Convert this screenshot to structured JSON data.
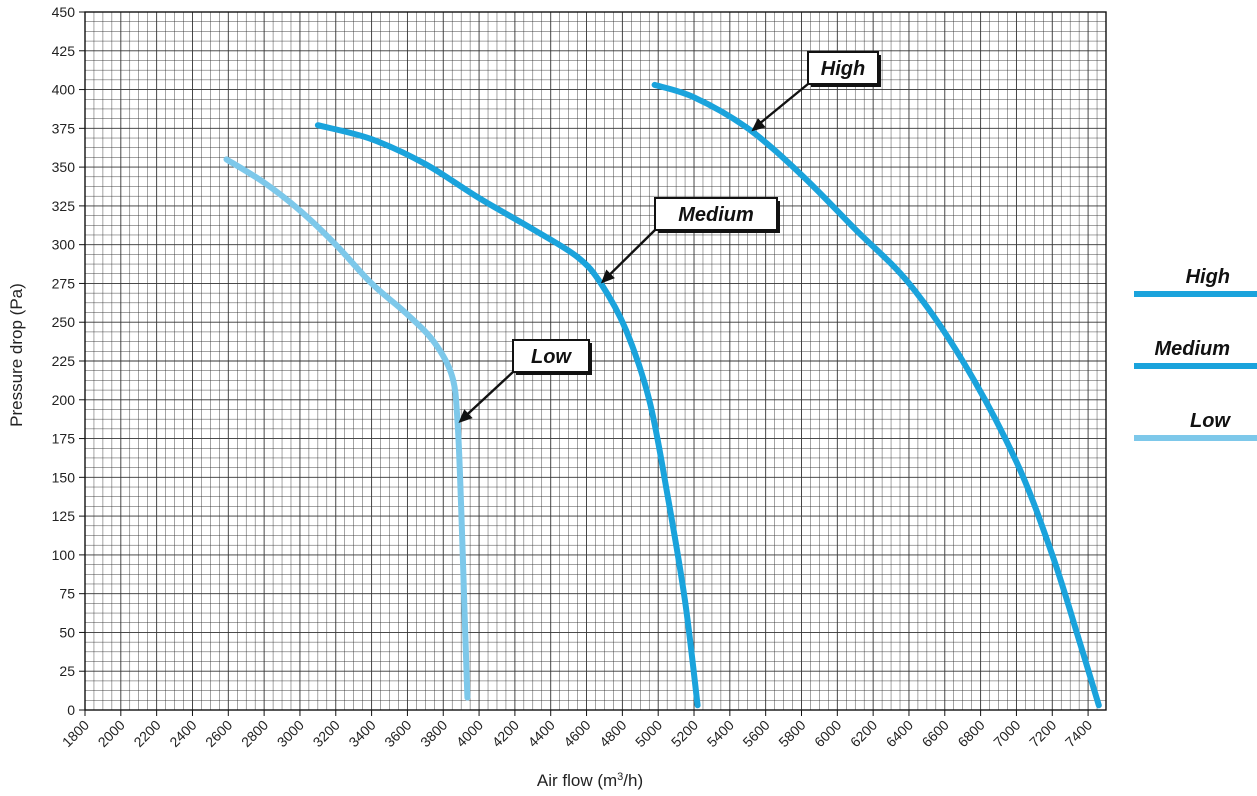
{
  "chart_data": {
    "type": "line",
    "title": "",
    "xlabel": "Air flow (m",
    "xlabel_sup": "3",
    "xlabel_tail": "/h)",
    "ylabel": "Pressure drop (Pa)",
    "xlim": [
      1800,
      7500
    ],
    "ylim": [
      0,
      450
    ],
    "x_ticks": [
      1800,
      2000,
      2200,
      2400,
      2600,
      2800,
      3000,
      3200,
      3400,
      3600,
      3800,
      4000,
      4200,
      4400,
      4600,
      4800,
      5000,
      5200,
      5400,
      5600,
      5800,
      6000,
      6200,
      6400,
      6600,
      6800,
      7000,
      7200,
      7400
    ],
    "y_ticks": [
      0,
      25,
      50,
      75,
      100,
      125,
      150,
      175,
      200,
      225,
      250,
      275,
      300,
      325,
      350,
      375,
      400,
      425,
      450
    ],
    "grid": true,
    "legend_position": "right",
    "series": [
      {
        "name": "High",
        "color": "#1aa3dc",
        "points": [
          [
            4980,
            403
          ],
          [
            5200,
            395
          ],
          [
            5500,
            375
          ],
          [
            5800,
            345
          ],
          [
            6100,
            310
          ],
          [
            6400,
            275
          ],
          [
            6700,
            225
          ],
          [
            7000,
            160
          ],
          [
            7200,
            100
          ],
          [
            7350,
            45
          ],
          [
            7460,
            3
          ]
        ],
        "callout": {
          "label": "High",
          "at": [
            5520,
            373
          ]
        }
      },
      {
        "name": "Medium",
        "color": "#1aa3dc",
        "points": [
          [
            3100,
            377
          ],
          [
            3400,
            368
          ],
          [
            3700,
            352
          ],
          [
            4000,
            330
          ],
          [
            4300,
            310
          ],
          [
            4550,
            292
          ],
          [
            4680,
            275
          ],
          [
            4820,
            245
          ],
          [
            4950,
            200
          ],
          [
            5050,
            140
          ],
          [
            5150,
            70
          ],
          [
            5220,
            3
          ]
        ],
        "callout": {
          "label": "Medium",
          "at": [
            4680,
            275
          ]
        }
      },
      {
        "name": "Low",
        "color": "#7dc8ea",
        "points": [
          [
            2590,
            355
          ],
          [
            2800,
            340
          ],
          [
            3000,
            322
          ],
          [
            3200,
            300
          ],
          [
            3400,
            275
          ],
          [
            3600,
            255
          ],
          [
            3750,
            237
          ],
          [
            3850,
            215
          ],
          [
            3880,
            185
          ],
          [
            3900,
            130
          ],
          [
            3920,
            60
          ],
          [
            3935,
            8
          ]
        ],
        "callout": {
          "label": "Low",
          "at": [
            3885,
            185
          ]
        }
      }
    ]
  }
}
